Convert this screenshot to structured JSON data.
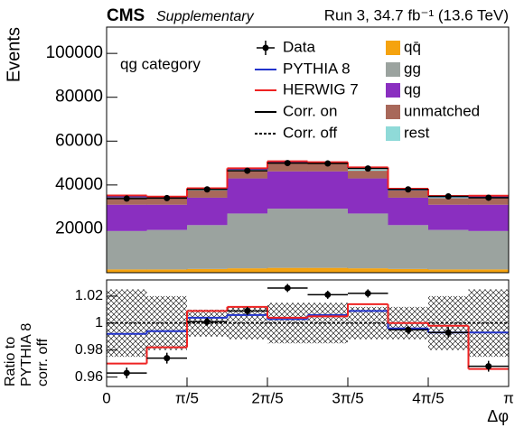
{
  "chart_data": [
    {
      "type": "stacked_histogram",
      "title": "CMS",
      "subtitle": "Supplementary",
      "lumi": "Run 3, 34.7 fb⁻¹ (13.6 TeV)",
      "annotation": "qg category",
      "y_label": "Events",
      "bins": [
        0,
        0.31416,
        0.62832,
        0.94248,
        1.25664,
        1.5708,
        1.88496,
        2.19911,
        2.51327,
        2.82743,
        3.14159
      ],
      "xlim": [
        0,
        3.14159
      ],
      "xticks": [
        0,
        0.62832,
        1.25664,
        1.88496,
        2.51327,
        3.14159
      ],
      "ylim": [
        0,
        112000
      ],
      "yticks": [
        20000,
        40000,
        60000,
        80000,
        100000
      ],
      "series": [
        {
          "name": "qq̄",
          "color": "#f5a30f",
          "values": [
            1500,
            1500,
            1700,
            2000,
            2200,
            2200,
            2000,
            1700,
            1500,
            1500
          ]
        },
        {
          "name": "gg",
          "color": "#9ba39f",
          "values": [
            17500,
            18000,
            20000,
            25000,
            27000,
            27000,
            25000,
            20000,
            18000,
            17500
          ]
        },
        {
          "name": "qg",
          "color": "#8a2fc0",
          "values": [
            12000,
            11500,
            12500,
            16000,
            17000,
            17000,
            16000,
            12500,
            11500,
            12000
          ]
        },
        {
          "name": "unmatched",
          "color": "#a8685a",
          "values": [
            3500,
            3000,
            3300,
            3500,
            3800,
            3800,
            3500,
            3300,
            3000,
            3500
          ]
        },
        {
          "name": "rest",
          "color": "#8fdad8",
          "values": [
            500,
            500,
            500,
            500,
            500,
            500,
            500,
            500,
            500,
            500
          ]
        }
      ],
      "lines": [
        {
          "name": "PYTHIA 8",
          "color": "#2233cc",
          "values": [
            34800,
            34300,
            38100,
            47300,
            50600,
            50300,
            47800,
            38000,
            34800,
            34700
          ]
        },
        {
          "name": "HERWIG 7",
          "color": "#ee2222",
          "values": [
            35200,
            34700,
            38500,
            47600,
            50800,
            50400,
            48000,
            38300,
            35000,
            35100
          ]
        }
      ],
      "data": {
        "name": "Data",
        "values": [
          33800,
          34000,
          38000,
          46500,
          50000,
          49800,
          47500,
          38000,
          34800,
          34200
        ],
        "errors": [
          400,
          400,
          400,
          500,
          500,
          500,
          500,
          400,
          400,
          400
        ]
      },
      "styles": [
        "Corr. on",
        "Corr. off"
      ]
    },
    {
      "type": "ratio",
      "y_label": [
        "Ratio to",
        "PYTHIA 8",
        "corr. off"
      ],
      "x_label": "Δφ",
      "bins": [
        0,
        0.31416,
        0.62832,
        0.94248,
        1.25664,
        1.5708,
        1.88496,
        2.19911,
        2.51327,
        2.82743,
        3.14159
      ],
      "xlim": [
        0,
        3.14159
      ],
      "xticks": [
        0,
        {
          "value": 0.62832,
          "label": "π/5"
        },
        {
          "value": 1.25664,
          "label": "2π/5"
        },
        {
          "value": 1.88496,
          "label": "3π/5"
        },
        {
          "value": 2.51327,
          "label": "4π/5"
        },
        {
          "value": 3.14159,
          "label": "π"
        }
      ],
      "ylim": [
        0.953,
        1.032
      ],
      "yticks": [
        0.96,
        0.98,
        1,
        1.02
      ],
      "reference": 1,
      "band_errors": [
        0.025,
        0.02,
        0.01,
        0.012,
        0.015,
        0.015,
        0.012,
        0.012,
        0.02,
        0.025
      ],
      "lines": [
        {
          "name": "PYTHIA 8",
          "color": "#2233cc",
          "values": [
            0.992,
            0.994,
            1.004,
            1.006,
            1.003,
            1.006,
            1.009,
            0.996,
            0.993,
            0.993
          ]
        },
        {
          "name": "HERWIG 7",
          "color": "#ee2222",
          "values": [
            0.97,
            0.982,
            1.009,
            1.012,
            1.004,
            1.005,
            1.014,
            1.0,
            0.998,
            0.966
          ]
        }
      ],
      "data": {
        "name": "Data",
        "values": [
          0.963,
          0.974,
          1.001,
          1.009,
          1.026,
          1.021,
          1.022,
          0.995,
          0.993,
          0.968
        ],
        "errors": [
          0.004,
          0.004,
          0.003,
          0.003,
          0.003,
          0.003,
          0.003,
          0.003,
          0.004,
          0.004
        ]
      }
    }
  ]
}
